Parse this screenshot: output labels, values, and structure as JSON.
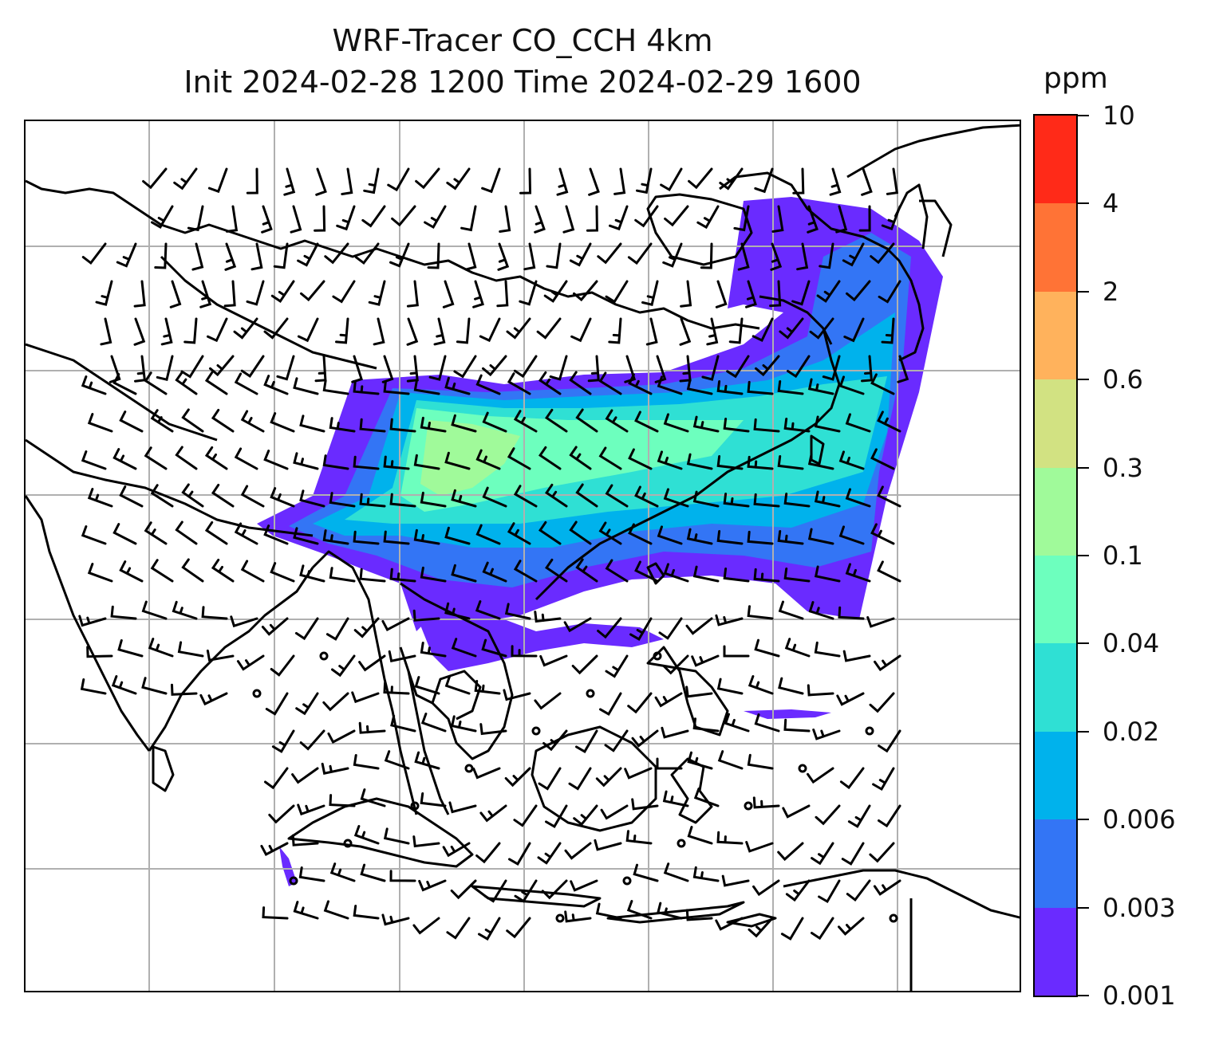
{
  "title": {
    "line1": "WRF-Tracer CO_CCH 4km",
    "line2": "Init 2024-02-28 1200 Time 2024-02-29 1600"
  },
  "colorbar": {
    "unit": "ppm",
    "ticks": [
      "0.001",
      "0.003",
      "0.006",
      "0.02",
      "0.04",
      "0.1",
      "0.3",
      "0.6",
      "2",
      "4",
      "10"
    ],
    "colors": [
      "#6a2bff",
      "#3375f5",
      "#00b2ec",
      "#2fe0d4",
      "#6dffbe",
      "#a0fa9a",
      "#d2e282",
      "#ffb25c",
      "#ff7336",
      "#ff2a18"
    ]
  },
  "map": {
    "projection": "Mercator",
    "gridlines": true,
    "coastlines": true,
    "wind_barbs": true,
    "wind_barb_color": "#000000",
    "plume_levels_shown": [
      "0.001",
      "0.003",
      "0.006",
      "0.02",
      "0.04",
      "0.1",
      "0.3"
    ]
  }
}
